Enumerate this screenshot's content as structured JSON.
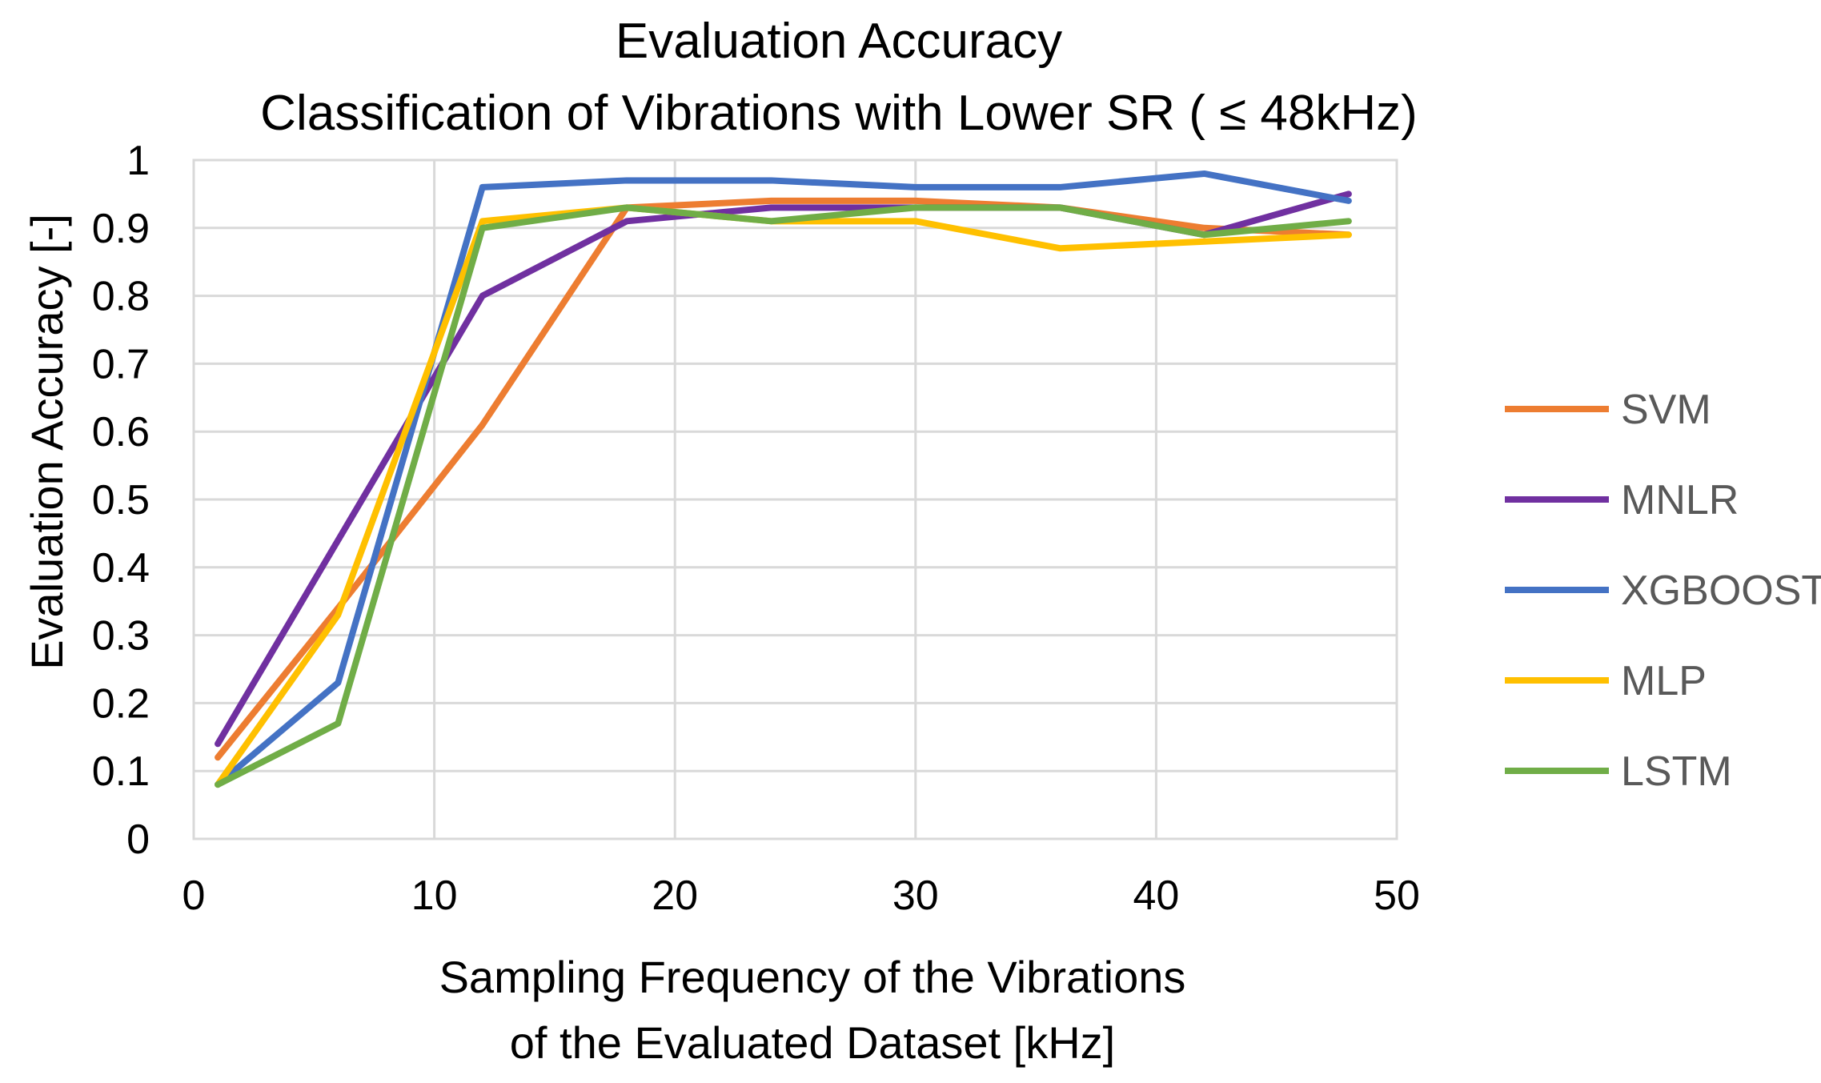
{
  "chart_data": {
    "type": "line",
    "title": "Evaluation Accuracy",
    "subtitle": "Classification of Vibrations with Lower SR ( ≤ 48kHz)",
    "xlabel_line1": "Sampling Frequency of the Vibrations",
    "xlabel_line2": "of the Evaluated Dataset [kHz]",
    "ylabel": "Evaluation Accuracy [-]",
    "xlim": [
      0,
      50
    ],
    "ylim": [
      0,
      1
    ],
    "xticks": [
      0,
      10,
      20,
      30,
      40,
      50
    ],
    "yticks": [
      0,
      0.1,
      0.2,
      0.3,
      0.4,
      0.5,
      0.6,
      0.7,
      0.8,
      0.9,
      1
    ],
    "ytick_labels": [
      "0",
      "0.1",
      "0.2",
      "0.3",
      "0.4",
      "0.5",
      "0.6",
      "0.7",
      "0.8",
      "0.9",
      "1"
    ],
    "grid": true,
    "legend_position": "right",
    "x": [
      1,
      6,
      12,
      18,
      24,
      30,
      36,
      42,
      48
    ],
    "series": [
      {
        "name": "SVM",
        "color": "#ED7D31",
        "values": [
          0.12,
          0.34,
          0.61,
          0.93,
          0.94,
          0.94,
          0.93,
          0.9,
          0.89
        ]
      },
      {
        "name": "MNLR",
        "color": "#7030A0",
        "values": [
          0.14,
          0.44,
          0.8,
          0.91,
          0.93,
          0.93,
          0.93,
          0.89,
          0.95
        ]
      },
      {
        "name": "XGBOOST",
        "color": "#4472C4",
        "values": [
          0.08,
          0.23,
          0.96,
          0.97,
          0.97,
          0.96,
          0.96,
          0.98,
          0.94
        ]
      },
      {
        "name": "MLP",
        "color": "#FFC000",
        "values": [
          0.08,
          0.33,
          0.91,
          0.93,
          0.91,
          0.91,
          0.87,
          0.88,
          0.89
        ]
      },
      {
        "name": "LSTM",
        "color": "#70AD47",
        "values": [
          0.08,
          0.17,
          0.9,
          0.93,
          0.91,
          0.93,
          0.93,
          0.89,
          0.91
        ]
      }
    ]
  }
}
